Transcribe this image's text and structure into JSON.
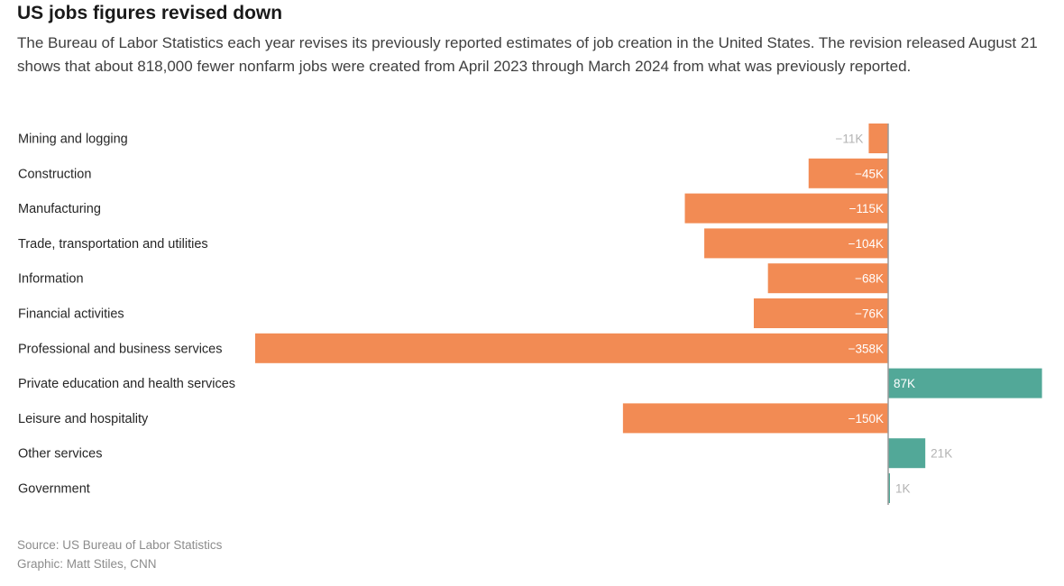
{
  "header": {
    "title": "US jobs figures revised down",
    "subtitle": "The Bureau of Labor Statistics each year revises its previously reported estimates of job creation in the United States. The revision released August 21 shows that about 818,000 fewer nonfarm jobs were created from April 2023 through March 2024 from what was previously reported."
  },
  "footer": {
    "source": "Source: US Bureau of Labor Statistics",
    "credit": "Graphic: Matt Stiles, CNN"
  },
  "colors": {
    "negative": "#f28b54",
    "positive": "#52a898",
    "axis": "#9a9a9a",
    "label_inside": "#ffffff",
    "label_outside": "#b3b3b3"
  },
  "chart_data": {
    "type": "bar",
    "orientation": "horizontal",
    "categories": [
      "Mining and logging",
      "Construction",
      "Manufacturing",
      "Trade, transportation and utilities",
      "Information",
      "Financial activities",
      "Professional and business services",
      "Private education and health services",
      "Leisure and hospitality",
      "Other services",
      "Government"
    ],
    "values": [
      -11,
      -45,
      -115,
      -104,
      -68,
      -76,
      -358,
      87,
      -150,
      21,
      1
    ],
    "value_labels": [
      "−11K",
      "−45K",
      "−115K",
      "−104K",
      "−68K",
      "−76K",
      "−358K",
      "87K",
      "−150K",
      "21K",
      "1K"
    ],
    "unit": "thousands of jobs",
    "title": "US jobs figures revised down",
    "xlabel": "",
    "ylabel": "",
    "xlim": [
      -358,
      87
    ],
    "grid": false,
    "legend": "none"
  }
}
